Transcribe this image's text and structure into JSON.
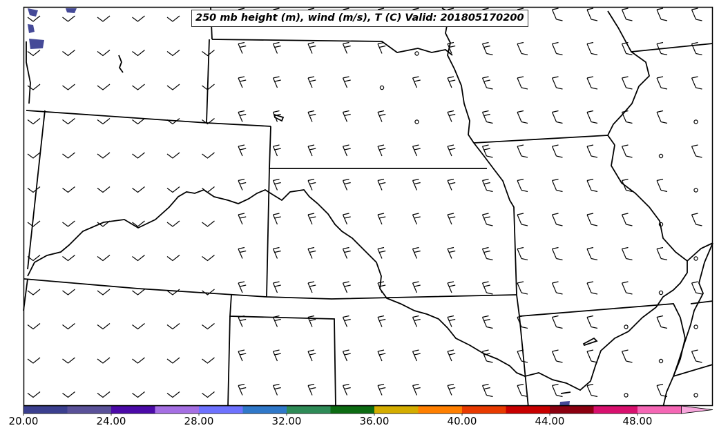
{
  "title": "250 mb height (m), wind (m/s), T (C) Valid: 201805170200",
  "colorbar": {
    "tick_labels": [
      "20.00",
      "24.00",
      "28.00",
      "32.00",
      "36.00",
      "40.00",
      "44.00",
      "48.00"
    ],
    "colors": [
      "#3b3f8f",
      "#5a5199",
      "#4b0aa8",
      "#a56fe3",
      "#6e72ff",
      "#2f78c9",
      "#2e8b57",
      "#0c6b12",
      "#d4ad00",
      "#ff7f00",
      "#e83a00",
      "#c80000",
      "#8b0010",
      "#d8106e",
      "#f567b5",
      "#f7a6dc"
    ],
    "extend": "max"
  },
  "colors": {
    "temperature_fill": "#3b3f8f",
    "borders": "#000000",
    "barbs": "#000000"
  }
}
